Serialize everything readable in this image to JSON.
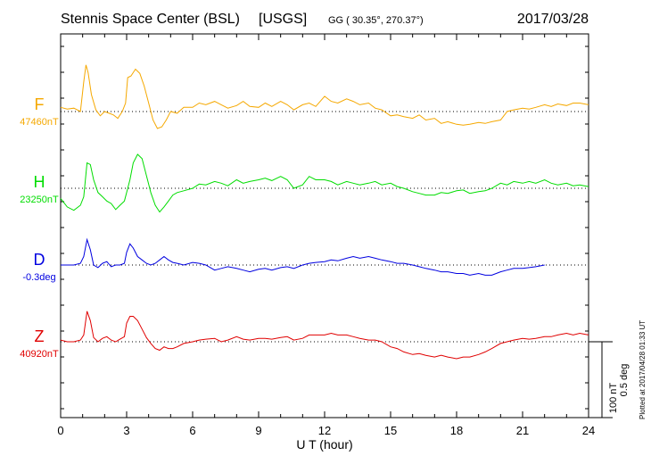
{
  "header": {
    "station": "Stennis Space Center (BSL)",
    "agency": "[USGS]",
    "coords": "GG ( 30.35°, 270.37°)",
    "date": "2017/03/28"
  },
  "footer": {
    "plotted": "Plotted at 2017/04/28 01:33 UT"
  },
  "colors": {
    "F": "#f5a800",
    "H": "#00dd00",
    "D": "#0000e0",
    "Z": "#e00000"
  },
  "chart_data": {
    "type": "line",
    "xlabel": "U T (hour)",
    "xlim": [
      0,
      24
    ],
    "xticks": [
      "0",
      "3",
      "6",
      "9",
      "12",
      "15",
      "18",
      "21",
      "24"
    ],
    "scale_bar": {
      "nT": "100 nT",
      "deg": "0.5 deg"
    },
    "series": [
      {
        "name": "F",
        "baseline_label": "47460nT",
        "ref_value": 0,
        "unit": "nT",
        "x": [
          0,
          0.3,
          0.6,
          0.9,
          1.05,
          1.15,
          1.25,
          1.4,
          1.6,
          1.8,
          2.0,
          2.2,
          2.4,
          2.6,
          2.8,
          2.95,
          3.05,
          3.2,
          3.4,
          3.6,
          3.8,
          4.0,
          4.2,
          4.4,
          4.6,
          4.8,
          5.0,
          5.3,
          5.6,
          6.0,
          6.3,
          6.6,
          7.0,
          7.3,
          7.6,
          8.0,
          8.3,
          8.6,
          9.0,
          9.3,
          9.6,
          10.0,
          10.3,
          10.6,
          11.0,
          11.3,
          11.6,
          12.0,
          12.3,
          12.6,
          13.0,
          13.3,
          13.6,
          14.0,
          14.3,
          14.6,
          15.0,
          15.3,
          15.6,
          16.0,
          16.3,
          16.6,
          17.0,
          17.3,
          17.6,
          18.0,
          18.3,
          18.6,
          19.0,
          19.3,
          19.6,
          20.0,
          20.3,
          20.6,
          21.0,
          21.3,
          21.6,
          22.0,
          22.3,
          22.6,
          23.0,
          23.3,
          23.6,
          24.0
        ],
        "values": [
          5,
          3,
          4,
          0,
          35,
          55,
          46,
          20,
          2,
          -5,
          0,
          -2,
          -4,
          -8,
          0,
          10,
          40,
          42,
          50,
          45,
          30,
          10,
          -10,
          -20,
          -18,
          -10,
          0,
          -2,
          5,
          5,
          10,
          8,
          12,
          8,
          4,
          7,
          12,
          6,
          5,
          10,
          6,
          12,
          8,
          2,
          8,
          10,
          6,
          18,
          12,
          10,
          15,
          12,
          8,
          10,
          4,
          2,
          -5,
          -4,
          -6,
          -8,
          -4,
          -10,
          -8,
          -14,
          -12,
          -15,
          -16,
          -15,
          -13,
          -14,
          -12,
          -10,
          0,
          2,
          4,
          3,
          5,
          8,
          6,
          9,
          7,
          10,
          10,
          8
        ]
      },
      {
        "name": "H",
        "baseline_label": "23250nT",
        "ref_value": 0,
        "unit": "nT",
        "x": [
          0,
          0.3,
          0.6,
          0.9,
          1.05,
          1.2,
          1.35,
          1.5,
          1.7,
          1.9,
          2.1,
          2.3,
          2.5,
          2.7,
          2.9,
          3.0,
          3.15,
          3.3,
          3.5,
          3.7,
          3.9,
          4.1,
          4.3,
          4.5,
          4.7,
          4.9,
          5.1,
          5.3,
          5.6,
          6.0,
          6.3,
          6.6,
          7.0,
          7.3,
          7.6,
          8.0,
          8.3,
          8.6,
          9.0,
          9.3,
          9.6,
          10.0,
          10.3,
          10.6,
          11.0,
          11.3,
          11.6,
          12.0,
          12.3,
          12.6,
          13.0,
          13.3,
          13.6,
          14.0,
          14.3,
          14.6,
          15.0,
          15.3,
          15.6,
          16.0,
          16.3,
          16.6,
          17.0,
          17.3,
          17.6,
          18.0,
          18.3,
          18.6,
          19.0,
          19.3,
          19.6,
          20.0,
          20.3,
          20.6,
          21.0,
          21.3,
          21.6,
          22.0,
          22.3,
          22.6,
          23.0,
          23.3,
          23.6,
          24.0
        ],
        "values": [
          -12,
          -22,
          -26,
          -20,
          -10,
          30,
          28,
          10,
          -5,
          -10,
          -15,
          -18,
          -25,
          -20,
          -15,
          -5,
          10,
          30,
          40,
          35,
          15,
          -5,
          -20,
          -28,
          -22,
          -15,
          -8,
          -5,
          -3,
          0,
          5,
          4,
          8,
          6,
          3,
          10,
          6,
          8,
          10,
          12,
          9,
          14,
          10,
          0,
          4,
          14,
          10,
          10,
          8,
          4,
          8,
          6,
          4,
          6,
          8,
          4,
          6,
          2,
          0,
          -4,
          -6,
          -8,
          -8,
          -5,
          -6,
          -3,
          -2,
          -6,
          -4,
          -3,
          0,
          6,
          4,
          8,
          6,
          8,
          6,
          10,
          6,
          4,
          6,
          3,
          4,
          2
        ]
      },
      {
        "name": "D",
        "baseline_label": "-0.3deg",
        "ref_value": 0,
        "unit": "deg",
        "x": [
          0,
          0.3,
          0.6,
          0.9,
          1.05,
          1.2,
          1.35,
          1.5,
          1.7,
          1.9,
          2.1,
          2.3,
          2.5,
          2.7,
          2.9,
          3.0,
          3.15,
          3.3,
          3.5,
          3.7,
          3.9,
          4.1,
          4.3,
          4.5,
          4.7,
          4.9,
          5.1,
          5.3,
          5.6,
          6.0,
          6.3,
          6.6,
          7.0,
          7.3,
          7.6,
          8.0,
          8.3,
          8.6,
          9.0,
          9.3,
          9.6,
          10.0,
          10.3,
          10.6,
          11.0,
          11.3,
          11.6,
          12.0,
          12.3,
          12.6,
          13.0,
          13.3,
          13.6,
          14.0,
          14.3,
          14.6,
          15.0,
          15.3,
          15.6,
          16.0,
          16.3,
          16.6,
          17.0,
          17.3,
          17.6,
          18.0,
          18.3,
          18.6,
          19.0,
          19.3,
          19.6,
          20.0,
          20.3,
          20.6,
          21.0,
          21.3,
          21.6,
          22.0
        ],
        "values": [
          0,
          0,
          0,
          2,
          10,
          30,
          18,
          0,
          -3,
          2,
          4,
          -2,
          0,
          0,
          2,
          15,
          25,
          20,
          10,
          6,
          2,
          0,
          2,
          6,
          10,
          6,
          3,
          2,
          0,
          3,
          2,
          0,
          -6,
          -4,
          -2,
          -4,
          -6,
          -8,
          -5,
          -4,
          -6,
          -3,
          -2,
          -4,
          0,
          2,
          3,
          4,
          6,
          5,
          8,
          10,
          8,
          10,
          8,
          6,
          4,
          2,
          2,
          0,
          -2,
          -4,
          -6,
          -8,
          -8,
          -10,
          -10,
          -12,
          -10,
          -12,
          -12,
          -8,
          -6,
          -4,
          -4,
          -3,
          -2,
          0
        ]
      },
      {
        "name": "Z",
        "baseline_label": "40920nT",
        "ref_value": 0,
        "unit": "nT",
        "x": [
          0,
          0.3,
          0.6,
          0.9,
          1.05,
          1.2,
          1.35,
          1.5,
          1.7,
          1.9,
          2.1,
          2.3,
          2.5,
          2.7,
          2.9,
          3.0,
          3.15,
          3.3,
          3.5,
          3.7,
          3.9,
          4.1,
          4.3,
          4.5,
          4.7,
          4.9,
          5.1,
          5.3,
          5.6,
          6.0,
          6.3,
          6.6,
          7.0,
          7.3,
          7.6,
          8.0,
          8.3,
          8.6,
          9.0,
          9.3,
          9.6,
          10.0,
          10.3,
          10.6,
          11.0,
          11.3,
          11.6,
          12.0,
          12.3,
          12.6,
          13.0,
          13.3,
          13.6,
          14.0,
          14.3,
          14.6,
          15.0,
          15.3,
          15.6,
          16.0,
          16.3,
          16.6,
          17.0,
          17.3,
          17.6,
          18.0,
          18.3,
          18.6,
          19.0,
          19.3,
          19.6,
          20.0,
          20.3,
          20.6,
          21.0,
          21.3,
          21.6,
          22.0,
          22.3,
          22.6,
          23.0,
          23.3,
          23.6,
          24.0
        ],
        "values": [
          2,
          0,
          0,
          2,
          8,
          36,
          25,
          5,
          0,
          4,
          6,
          2,
          0,
          3,
          6,
          22,
          30,
          30,
          25,
          15,
          5,
          -2,
          -8,
          -10,
          -6,
          -8,
          -8,
          -6,
          -2,
          0,
          2,
          3,
          4,
          0,
          2,
          6,
          3,
          2,
          4,
          4,
          3,
          5,
          6,
          2,
          4,
          8,
          8,
          8,
          10,
          8,
          8,
          6,
          4,
          2,
          2,
          0,
          -6,
          -8,
          -12,
          -15,
          -14,
          -16,
          -18,
          -16,
          -18,
          -20,
          -18,
          -18,
          -15,
          -12,
          -8,
          -2,
          0,
          2,
          4,
          3,
          4,
          6,
          6,
          8,
          10,
          8,
          10,
          8
        ]
      }
    ]
  }
}
